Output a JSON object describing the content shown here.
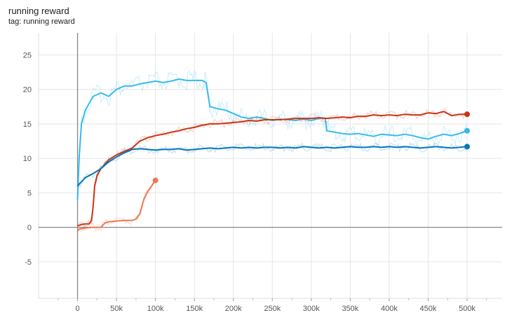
{
  "panel": {
    "title": "running reward",
    "subtitle": "tag: running reward"
  },
  "chart_data": {
    "type": "line",
    "title": "running reward",
    "subtitle": "tag: running reward",
    "xlabel": "",
    "ylabel": "",
    "xlim": [
      -50000,
      545000
    ],
    "ylim": [
      -10.3,
      28.2
    ],
    "grid": true,
    "x_ticks": [
      0,
      50000,
      100000,
      150000,
      200000,
      250000,
      300000,
      350000,
      400000,
      450000,
      500000
    ],
    "x_tick_labels": [
      "0",
      "50k",
      "100k",
      "150k",
      "200k",
      "250k",
      "300k",
      "350k",
      "400k",
      "450k",
      "500k"
    ],
    "y_ticks": [
      -5,
      0,
      5,
      10,
      15,
      20,
      25
    ],
    "y_tick_labels": [
      "-5",
      "0",
      "5",
      "10",
      "15",
      "20",
      "25"
    ],
    "series": [
      {
        "color": "#33bbee",
        "x": [
          0,
          2000,
          5000,
          10000,
          20000,
          30000,
          40000,
          50000,
          60000,
          70000,
          80000,
          90000,
          100000,
          110000,
          120000,
          130000,
          140000,
          150000,
          160000,
          165000,
          170000,
          180000,
          190000,
          200000,
          210000,
          220000,
          230000,
          240000,
          250000,
          260000,
          270000,
          280000,
          290000,
          300000,
          310000,
          318000,
          320000,
          330000,
          340000,
          350000,
          360000,
          370000,
          380000,
          390000,
          400000,
          410000,
          420000,
          430000,
          440000,
          450000,
          460000,
          470000,
          480000,
          490000,
          500000
        ],
        "y": [
          4.0,
          10.0,
          15.0,
          17.0,
          19.0,
          19.5,
          19.0,
          20.0,
          20.5,
          20.5,
          20.8,
          21.0,
          21.2,
          21.0,
          21.2,
          21.5,
          21.3,
          21.3,
          21.3,
          21.0,
          17.5,
          17.2,
          17.0,
          16.5,
          16.0,
          15.8,
          16.0,
          15.8,
          15.5,
          15.7,
          15.6,
          15.5,
          15.7,
          15.5,
          15.8,
          15.8,
          14.0,
          13.8,
          13.6,
          13.5,
          13.6,
          13.4,
          13.2,
          13.5,
          13.4,
          13.3,
          13.5,
          13.3,
          13.0,
          12.8,
          13.2,
          13.5,
          13.3,
          13.6,
          14.0
        ]
      },
      {
        "color": "#cc3311",
        "x": [
          0,
          5000,
          10000,
          15000,
          18000,
          20000,
          22000,
          25000,
          30000,
          40000,
          50000,
          60000,
          70000,
          80000,
          90000,
          100000,
          110000,
          120000,
          130000,
          140000,
          150000,
          160000,
          170000,
          180000,
          190000,
          200000,
          210000,
          220000,
          230000,
          240000,
          250000,
          260000,
          270000,
          280000,
          290000,
          300000,
          310000,
          320000,
          330000,
          340000,
          350000,
          360000,
          370000,
          380000,
          390000,
          400000,
          410000,
          420000,
          430000,
          440000,
          450000,
          460000,
          470000,
          480000,
          490000,
          500000
        ],
        "y": [
          0.2,
          0.4,
          0.5,
          0.5,
          1.0,
          3.0,
          6.0,
          7.5,
          8.5,
          9.8,
          10.5,
          11.0,
          11.5,
          12.5,
          13.0,
          13.3,
          13.5,
          13.8,
          14.0,
          14.3,
          14.5,
          14.8,
          15.0,
          15.0,
          15.1,
          15.2,
          15.3,
          15.5,
          15.4,
          15.6,
          15.6,
          15.6,
          15.7,
          15.8,
          15.8,
          15.8,
          15.9,
          15.8,
          15.9,
          16.0,
          15.9,
          16.1,
          16.1,
          16.3,
          16.2,
          16.3,
          16.2,
          16.4,
          16.3,
          16.3,
          16.6,
          16.5,
          16.8,
          16.2,
          16.4,
          16.4
        ]
      },
      {
        "color": "#0077bb",
        "x": [
          0,
          5000,
          10000,
          20000,
          30000,
          40000,
          50000,
          60000,
          70000,
          80000,
          90000,
          100000,
          110000,
          120000,
          130000,
          140000,
          150000,
          160000,
          170000,
          180000,
          190000,
          200000,
          210000,
          220000,
          230000,
          240000,
          250000,
          260000,
          270000,
          280000,
          290000,
          300000,
          310000,
          320000,
          330000,
          340000,
          350000,
          360000,
          370000,
          380000,
          390000,
          400000,
          410000,
          420000,
          430000,
          440000,
          450000,
          460000,
          470000,
          480000,
          490000,
          500000
        ],
        "y": [
          6.0,
          6.6,
          7.2,
          7.8,
          8.5,
          9.5,
          10.2,
          10.8,
          11.3,
          11.4,
          11.3,
          11.2,
          11.3,
          11.3,
          11.4,
          11.2,
          11.3,
          11.4,
          11.5,
          11.4,
          11.5,
          11.6,
          11.5,
          11.6,
          11.5,
          11.6,
          11.6,
          11.5,
          11.6,
          11.5,
          11.7,
          11.6,
          11.5,
          11.6,
          11.5,
          11.6,
          11.7,
          11.6,
          11.6,
          11.7,
          11.6,
          11.7,
          11.6,
          11.7,
          11.6,
          11.5,
          11.6,
          11.7,
          11.6,
          11.5,
          11.6,
          11.7
        ]
      },
      {
        "color": "#ee7755",
        "x": [
          0,
          2000,
          5000,
          10000,
          20000,
          30000,
          35000,
          40000,
          50000,
          60000,
          70000,
          75000,
          80000,
          85000,
          90000,
          95000,
          100000
        ],
        "y": [
          -0.5,
          -0.3,
          -0.2,
          -0.1,
          0.0,
          0.0,
          0.6,
          0.8,
          0.9,
          1.0,
          1.0,
          1.2,
          2.0,
          4.0,
          5.2,
          6.0,
          6.8
        ]
      }
    ]
  }
}
